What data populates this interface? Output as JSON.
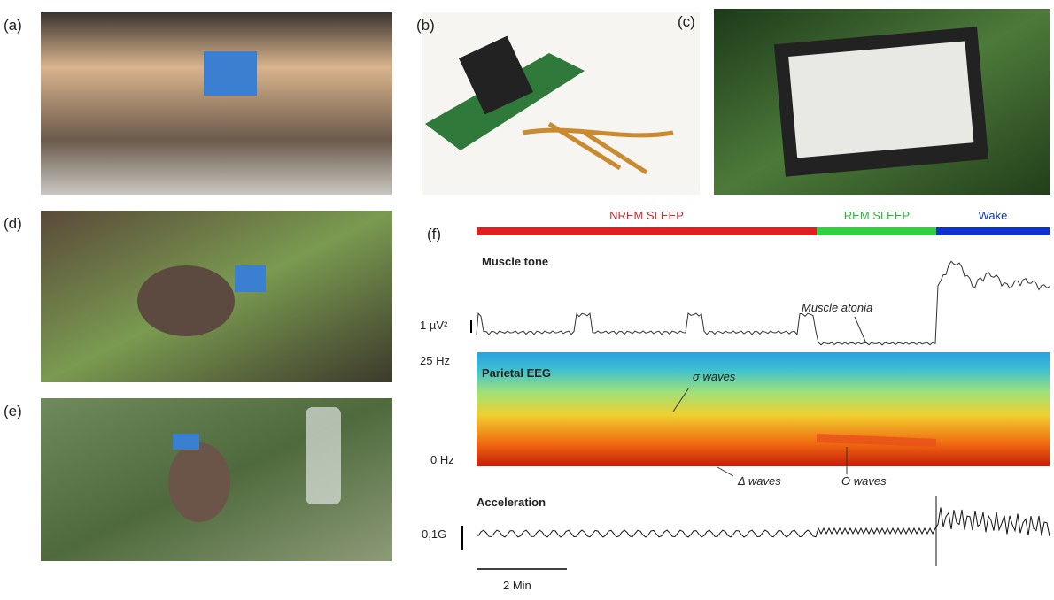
{
  "panels": {
    "a": "(a)",
    "b": "(b)",
    "c": "(c)",
    "d": "(d)",
    "e": "(e)",
    "f": "(f)"
  },
  "hypnogram": {
    "stages": [
      "NREM SLEEP",
      "REM SLEEP",
      "Wake"
    ]
  },
  "muscle": {
    "title": "Muscle tone",
    "scale": "1 µV²",
    "annotation": "Muscle atonia"
  },
  "eeg": {
    "title": "Parietal EEG",
    "top": "25 Hz",
    "bottom": "0 Hz",
    "sigma": "σ waves",
    "delta": "Δ waves",
    "theta": "Θ waves"
  },
  "accel": {
    "title": "Acceleration",
    "scale": "0,1G"
  },
  "timebar": "2 Min"
}
